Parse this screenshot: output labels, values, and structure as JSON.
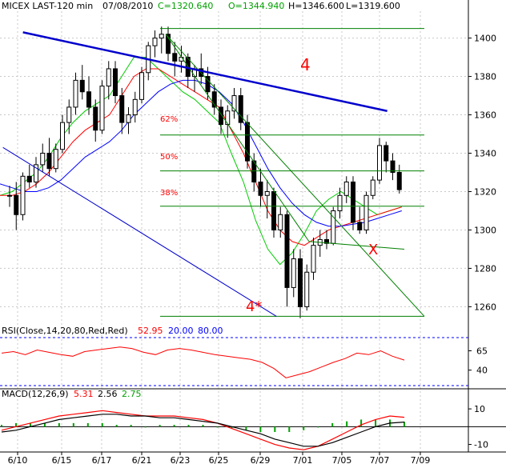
{
  "header": {
    "symbol": "MICEX LAST-120 min",
    "date": "07/08/2010",
    "close": "C=1320.640",
    "open": "O=1344.940",
    "high": "H=1346.600",
    "low": "L=1319.600"
  },
  "colors": {
    "symbol": "#000000",
    "close": "#00a000",
    "open": "#00a000",
    "high": "#000000",
    "low": "#000000",
    "fast_ma": "#00cc00",
    "mid_ma": "#ff0000",
    "slow_ma": "#0000ff",
    "trendline": "#0000cc",
    "fib": "#008000",
    "annotation": "#ff0000"
  },
  "annotations": {
    "wave_4": "4",
    "wave_4_star": "4*",
    "x_mark": "X",
    "fib_62": "62%",
    "fib_50": "50%",
    "fib_38": "38%"
  },
  "rsi_legend": {
    "name": "RSI(Close,14,20,80,Red,Red)",
    "value": "52.95",
    "lower": "20.00",
    "upper": "80.00"
  },
  "macd_legend": {
    "name": "MACD(12,26,9)",
    "v1": "5.31",
    "v2": "2.56",
    "v3": "2.75"
  },
  "chart_data": [
    {
      "type": "candlestick",
      "title": "MICEX LAST-120 min",
      "x_tick_labels": [
        "6/10",
        "6/15",
        "6/17",
        "6/21",
        "6/23",
        "6/25",
        "6/29",
        "7/01",
        "7/05",
        "7/07",
        "7/09"
      ],
      "y_ticks": [
        1260,
        1280,
        1300,
        1320,
        1340,
        1360,
        1380,
        1400
      ],
      "ylim": [
        1251,
        1414
      ],
      "candles": [
        [
          1318,
          1323,
          1312,
          1318
        ],
        [
          1318,
          1325,
          1300,
          1308
        ],
        [
          1308,
          1330,
          1305,
          1328
        ],
        [
          1328,
          1334,
          1322,
          1325
        ],
        [
          1325,
          1338,
          1322,
          1334
        ],
        [
          1334,
          1345,
          1330,
          1340
        ],
        [
          1340,
          1348,
          1328,
          1332
        ],
        [
          1332,
          1345,
          1330,
          1342
        ],
        [
          1342,
          1360,
          1340,
          1356
        ],
        [
          1356,
          1368,
          1350,
          1364
        ],
        [
          1364,
          1382,
          1360,
          1378
        ],
        [
          1378,
          1386,
          1368,
          1372
        ],
        [
          1372,
          1380,
          1360,
          1364
        ],
        [
          1364,
          1368,
          1346,
          1352
        ],
        [
          1352,
          1378,
          1350,
          1375
        ],
        [
          1375,
          1388,
          1368,
          1384
        ],
        [
          1384,
          1388,
          1366,
          1370
        ],
        [
          1370,
          1374,
          1350,
          1356
        ],
        [
          1356,
          1364,
          1350,
          1360
        ],
        [
          1360,
          1372,
          1356,
          1368
        ],
        [
          1368,
          1385,
          1366,
          1382
        ],
        [
          1382,
          1398,
          1378,
          1396
        ],
        [
          1396,
          1404,
          1390,
          1400
        ],
        [
          1400,
          1406,
          1392,
          1402
        ],
        [
          1402,
          1406,
          1388,
          1392
        ],
        [
          1392,
          1398,
          1380,
          1388
        ],
        [
          1388,
          1396,
          1382,
          1390
        ],
        [
          1390,
          1392,
          1374,
          1380
        ],
        [
          1380,
          1386,
          1372,
          1384
        ],
        [
          1384,
          1392,
          1376,
          1380
        ],
        [
          1380,
          1385,
          1368,
          1372
        ],
        [
          1372,
          1376,
          1360,
          1364
        ],
        [
          1364,
          1368,
          1350,
          1355
        ],
        [
          1355,
          1365,
          1348,
          1362
        ],
        [
          1362,
          1374,
          1358,
          1370
        ],
        [
          1370,
          1374,
          1352,
          1356
        ],
        [
          1356,
          1360,
          1332,
          1336
        ],
        [
          1336,
          1340,
          1320,
          1325
        ],
        [
          1325,
          1332,
          1312,
          1318
        ],
        [
          1318,
          1326,
          1306,
          1320
        ],
        [
          1320,
          1322,
          1296,
          1300
        ],
        [
          1300,
          1312,
          1296,
          1308
        ],
        [
          1308,
          1310,
          1260,
          1270
        ],
        [
          1270,
          1290,
          1265,
          1285
        ],
        [
          1285,
          1290,
          1254,
          1260
        ],
        [
          1260,
          1282,
          1258,
          1278
        ],
        [
          1278,
          1296,
          1274,
          1292
        ],
        [
          1292,
          1300,
          1286,
          1295
        ],
        [
          1295,
          1300,
          1290,
          1293
        ],
        [
          1293,
          1312,
          1292,
          1310
        ],
        [
          1310,
          1322,
          1306,
          1318
        ],
        [
          1318,
          1328,
          1314,
          1325
        ],
        [
          1325,
          1328,
          1300,
          1304
        ],
        [
          1304,
          1312,
          1298,
          1300
        ],
        [
          1300,
          1320,
          1298,
          1318
        ],
        [
          1318,
          1328,
          1316,
          1326
        ],
        [
          1326,
          1348,
          1324,
          1344
        ],
        [
          1344,
          1346,
          1330,
          1336
        ],
        [
          1336,
          1340,
          1326,
          1330
        ],
        [
          1330,
          1334,
          1319,
          1321
        ]
      ],
      "moving_averages": [
        {
          "color": "green",
          "values": [
            1318,
            1320,
            1325,
            1330,
            1338,
            1348,
            1356,
            1362,
            1366,
            1370,
            1380,
            1390,
            1390,
            1384,
            1378,
            1372,
            1368,
            1362,
            1356,
            1340,
            1325,
            1305,
            1290,
            1282,
            1288,
            1298,
            1310,
            1316,
            1320,
            1316,
            1312,
            1308,
            1310,
            1312
          ]
        },
        {
          "color": "red",
          "values": [
            1318,
            1318,
            1320,
            1324,
            1330,
            1338,
            1346,
            1352,
            1356,
            1360,
            1370,
            1380,
            1384,
            1384,
            1380,
            1376,
            1372,
            1368,
            1364,
            1352,
            1340,
            1325,
            1310,
            1300,
            1294,
            1292,
            1296,
            1300,
            1302,
            1304,
            1306,
            1308,
            1310,
            1312
          ]
        },
        {
          "color": "blue",
          "values": [
            1324,
            1322,
            1320,
            1320,
            1322,
            1326,
            1332,
            1338,
            1342,
            1346,
            1352,
            1360,
            1366,
            1372,
            1376,
            1378,
            1378,
            1376,
            1372,
            1366,
            1356,
            1344,
            1332,
            1322,
            1314,
            1308,
            1304,
            1302,
            1302,
            1303,
            1304,
            1306,
            1308,
            1310
          ]
        }
      ],
      "fib_levels": [
        {
          "label": "62%",
          "value": 1349.5
        },
        {
          "label": "50%",
          "value": 1330.8
        },
        {
          "label": "38%",
          "value": 1312.4
        }
      ],
      "trendlines": [
        {
          "name": "4",
          "from": [
            1.0,
            1403
          ],
          "to": [
            28.3,
            1362
          ]
        },
        {
          "name": "4*",
          "from": [
            -0.5,
            1343
          ],
          "to": [
            20.0,
            1255
          ]
        }
      ],
      "grid": true
    },
    {
      "type": "line",
      "title": "RSI(Close,14,20,80,Red,Red)",
      "y_ticks": [
        40,
        65
      ],
      "ylim": [
        20,
        80
      ],
      "series": [
        {
          "values": [
            62,
            64,
            60,
            66,
            63,
            60,
            58,
            64,
            66,
            68,
            70,
            68,
            63,
            60,
            66,
            68,
            66,
            63,
            60,
            58,
            56,
            54,
            50,
            42,
            30,
            34,
            38,
            44,
            50,
            55,
            62,
            60,
            65,
            58,
            53
          ]
        }
      ]
    },
    {
      "type": "line",
      "title": "MACD(12,26,9)",
      "y_ticks": [
        -10,
        10
      ],
      "ylim": [
        -12,
        15
      ],
      "series": [
        {
          "values": [
            -2,
            0,
            2,
            4,
            6,
            7,
            8,
            9,
            8,
            7,
            6,
            6,
            6,
            5,
            4,
            2,
            -1,
            -4,
            -7,
            -10,
            -12,
            -13,
            -11,
            -7,
            -3,
            1,
            4,
            6,
            5.3
          ]
        },
        {
          "values": [
            -3,
            -2,
            0,
            2,
            4,
            5,
            6,
            7,
            7,
            6,
            6,
            5,
            5,
            4,
            3,
            2,
            0,
            -2,
            -4,
            -7,
            -9,
            -11,
            -11,
            -9,
            -6,
            -3,
            0,
            2,
            2.6
          ]
        }
      ],
      "histogram": [
        1,
        2,
        2,
        2,
        2,
        2,
        2,
        2,
        1,
        1,
        0,
        1,
        1,
        1,
        1,
        0,
        -1,
        -2,
        -3,
        -3,
        -3,
        -2,
        0,
        2,
        3,
        4,
        4,
        4,
        2.75
      ]
    }
  ]
}
